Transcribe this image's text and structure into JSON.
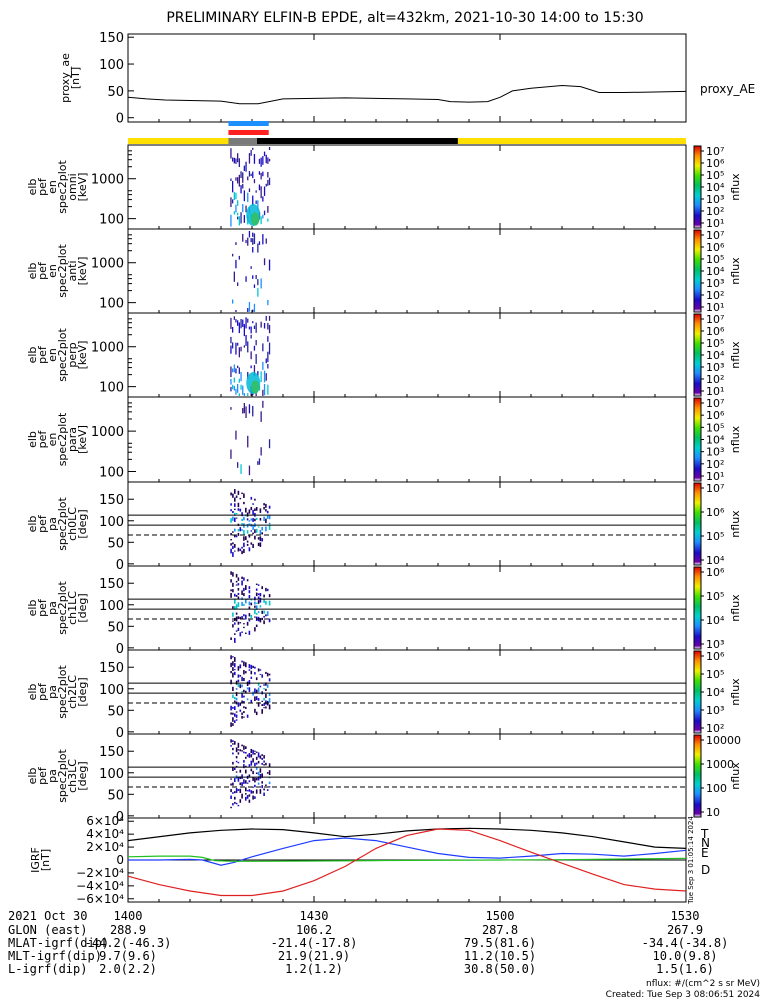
{
  "title": "PRELIMINARY ELFIN-B EPDE, alt=432km, 2021-10-30 14:00 to 15:30",
  "time": {
    "range_min": [
      0,
      90
    ],
    "ticks": [
      {
        "t": 0,
        "label": "1400"
      },
      {
        "t": 30,
        "label": "1430"
      },
      {
        "t": 60,
        "label": "1500"
      },
      {
        "t": 90,
        "label": "1530"
      }
    ]
  },
  "colors": {
    "proxy_bar": "#ffe000",
    "black_bar": "#000000",
    "blue_marker": "#1e8fff",
    "red_marker": "#ff2020",
    "spec_bg": "#ffffff"
  },
  "chart_data": [
    {
      "type": "line",
      "panel": "proxy_ae",
      "ylabel_lines": [
        "proxy_ae",
        "[nT]"
      ],
      "ylim": [
        0,
        150
      ],
      "yticks": [
        {
          "v": 0,
          "label": "0"
        },
        {
          "v": 50,
          "label": "50"
        },
        {
          "v": 100,
          "label": "100"
        },
        {
          "v": 150,
          "label": "150"
        }
      ],
      "legend": "proxy_AE",
      "x": [
        0,
        3,
        6,
        10,
        15,
        18,
        21,
        25,
        30,
        35,
        40,
        45,
        50,
        52,
        55,
        58,
        60,
        62,
        65,
        70,
        73,
        76,
        80,
        85,
        90
      ],
      "y": [
        38,
        35,
        33,
        32,
        31,
        26,
        26,
        35,
        36,
        37,
        36,
        35,
        34,
        30,
        29,
        30,
        38,
        50,
        55,
        60,
        58,
        47,
        47,
        48,
        49
      ]
    },
    {
      "type": "heatmap",
      "panel": "omni",
      "ylabel_lines": [
        "elb",
        "pef",
        "en",
        "spec2plot",
        "omni",
        "[keV]"
      ],
      "yscale": "log",
      "yticks": [
        {
          "v": 100,
          "label": "100"
        },
        {
          "v": 1000,
          "label": "1000"
        }
      ],
      "colorbar": {
        "label": "nflux",
        "ticks": [
          "10⁷",
          "10⁶",
          "10⁵",
          "10⁴",
          "10³",
          "10²",
          "10¹"
        ]
      }
    },
    {
      "type": "heatmap",
      "panel": "anti",
      "ylabel_lines": [
        "elb",
        "pef",
        "en",
        "spec2plot",
        "anti",
        "[keV]"
      ],
      "yscale": "log",
      "yticks": [
        {
          "v": 100,
          "label": "100"
        },
        {
          "v": 1000,
          "label": "1000"
        }
      ],
      "colorbar": {
        "label": "nflux",
        "ticks": [
          "10⁷",
          "10⁶",
          "10⁵",
          "10⁴",
          "10³",
          "10²",
          "10¹"
        ]
      }
    },
    {
      "type": "heatmap",
      "panel": "perp",
      "ylabel_lines": [
        "elb",
        "pef",
        "en",
        "spec2plot",
        "perp",
        "[keV]"
      ],
      "yscale": "log",
      "yticks": [
        {
          "v": 100,
          "label": "100"
        },
        {
          "v": 1000,
          "label": "1000"
        }
      ],
      "colorbar": {
        "label": "nflux",
        "ticks": [
          "10⁷",
          "10⁶",
          "10⁵",
          "10⁴",
          "10³",
          "10²",
          "10¹"
        ]
      }
    },
    {
      "type": "heatmap",
      "panel": "para",
      "ylabel_lines": [
        "elb",
        "pef",
        "en",
        "spec2plot",
        "para",
        "[keV]"
      ],
      "yscale": "log",
      "yticks": [
        {
          "v": 100,
          "label": "100"
        },
        {
          "v": 1000,
          "label": "1000"
        }
      ],
      "colorbar": {
        "label": "nflux",
        "ticks": [
          "10⁷",
          "10⁶",
          "10⁵",
          "10⁴",
          "10³",
          "10²",
          "10¹"
        ]
      }
    },
    {
      "type": "heatmap",
      "panel": "ch0LC",
      "ylabel_lines": [
        "elb",
        "pef",
        "pa",
        "spec2plot",
        "ch0LC",
        "[deg]"
      ],
      "ylim": [
        0,
        180
      ],
      "yticks": [
        {
          "v": 0,
          "label": "0"
        },
        {
          "v": 50,
          "label": "50"
        },
        {
          "v": 100,
          "label": "100"
        },
        {
          "v": 150,
          "label": "150"
        }
      ],
      "reference_lines": {
        "solid": [
          113,
          90
        ],
        "dashed": [
          67
        ]
      },
      "colorbar": {
        "label": "nflux",
        "ticks": [
          "10⁷",
          "10⁶",
          "10⁵",
          "10⁴"
        ]
      }
    },
    {
      "type": "heatmap",
      "panel": "ch1LC",
      "ylabel_lines": [
        "elb",
        "pef",
        "pa",
        "spec2plot",
        "ch1LC",
        "[deg]"
      ],
      "ylim": [
        0,
        180
      ],
      "yticks": [
        {
          "v": 0,
          "label": "0"
        },
        {
          "v": 50,
          "label": "50"
        },
        {
          "v": 100,
          "label": "100"
        },
        {
          "v": 150,
          "label": "150"
        }
      ],
      "reference_lines": {
        "solid": [
          113,
          90
        ],
        "dashed": [
          67
        ]
      },
      "colorbar": {
        "label": "nflux",
        "ticks": [
          "10⁶",
          "10⁵",
          "10⁴",
          "10³"
        ]
      }
    },
    {
      "type": "heatmap",
      "panel": "ch2LC",
      "ylabel_lines": [
        "elb",
        "pef",
        "pa",
        "spec2plot",
        "ch2LC",
        "[deg]"
      ],
      "ylim": [
        0,
        180
      ],
      "yticks": [
        {
          "v": 0,
          "label": "0"
        },
        {
          "v": 50,
          "label": "50"
        },
        {
          "v": 100,
          "label": "100"
        },
        {
          "v": 150,
          "label": "150"
        }
      ],
      "reference_lines": {
        "solid": [
          113,
          90
        ],
        "dashed": [
          67
        ]
      },
      "colorbar": {
        "label": "nflux",
        "ticks": [
          "10⁶",
          "10⁵",
          "10⁴",
          "10³",
          "10²"
        ]
      }
    },
    {
      "type": "heatmap",
      "panel": "ch3LC",
      "ylabel_lines": [
        "elb",
        "pef",
        "pa",
        "spec2plot",
        "ch3LC",
        "[deg]"
      ],
      "ylim": [
        0,
        180
      ],
      "yticks": [
        {
          "v": 0,
          "label": "0"
        },
        {
          "v": 50,
          "label": "50"
        },
        {
          "v": 100,
          "label": "100"
        },
        {
          "v": 150,
          "label": "150"
        }
      ],
      "reference_lines": {
        "solid": [
          113,
          90
        ],
        "dashed": [
          67
        ]
      },
      "colorbar": {
        "label": "nflux",
        "ticks": [
          "10000",
          "1000",
          "100",
          "10"
        ]
      }
    },
    {
      "type": "line",
      "panel": "igrf",
      "ylabel_lines": [
        "IGRF",
        "[nT]"
      ],
      "ylim": [
        -65000,
        65000
      ],
      "yticks": [
        {
          "v": 60000,
          "label": "6×10⁴"
        },
        {
          "v": 40000,
          "label": "4×10⁴"
        },
        {
          "v": 20000,
          "label": "2×10⁴"
        },
        {
          "v": 0,
          "label": "0"
        },
        {
          "v": -20000,
          "label": "−2×10⁴"
        },
        {
          "v": -40000,
          "label": "−4×10⁴"
        },
        {
          "v": -60000,
          "label": "−6×10⁴"
        }
      ],
      "side_label": "Tue Sep  3 01:05:14 2024",
      "series": [
        {
          "name": "T",
          "color": "#000000",
          "x": [
            0,
            10,
            15,
            20,
            25,
            30,
            35,
            40,
            45,
            50,
            55,
            60,
            65,
            70,
            75,
            80,
            85,
            90
          ],
          "y": [
            30000,
            42000,
            46000,
            48000,
            47000,
            42000,
            36000,
            40000,
            45000,
            48000,
            49000,
            48000,
            46000,
            42000,
            36000,
            28000,
            20000,
            18000
          ]
        },
        {
          "name": "N",
          "color": "#1e3cff",
          "x": [
            0,
            5,
            10,
            12,
            15,
            17,
            20,
            25,
            30,
            35,
            40,
            45,
            50,
            55,
            60,
            65,
            70,
            75,
            80,
            85,
            90
          ],
          "y": [
            0,
            0,
            1000,
            0,
            -8000,
            -4000,
            5000,
            18000,
            30000,
            34000,
            30000,
            20000,
            10000,
            4000,
            3000,
            6000,
            10000,
            9000,
            6000,
            10000,
            15000
          ]
        },
        {
          "name": "E",
          "color": "#20c020",
          "x": [
            0,
            5,
            10,
            12,
            14,
            17,
            20,
            30,
            40,
            50,
            60,
            70,
            80,
            90
          ],
          "y": [
            5000,
            6000,
            6000,
            4000,
            -1000,
            -2000,
            -2000,
            -1500,
            -1000,
            -500,
            0,
            500,
            1500,
            2500
          ]
        },
        {
          "name": "D",
          "color": "#e02020",
          "x": [
            0,
            5,
            10,
            15,
            20,
            25,
            30,
            35,
            40,
            45,
            50,
            55,
            60,
            65,
            70,
            75,
            80,
            85,
            90
          ],
          "y": [
            -25000,
            -38000,
            -48000,
            -55000,
            -55000,
            -48000,
            -32000,
            -10000,
            18000,
            38000,
            48000,
            46000,
            30000,
            12000,
            -5000,
            -22000,
            -38000,
            -45000,
            -48000
          ]
        }
      ]
    }
  ],
  "orbit_table": {
    "rows": [
      {
        "label": "2021 Oct 30",
        "values": [
          "1400",
          "1430",
          "1500",
          "1530"
        ]
      },
      {
        "label": "GLON (east)",
        "values": [
          "288.9",
          "106.2",
          "287.8",
          "267.9"
        ]
      },
      {
        "label": "MLAT-igrf(dip)",
        "values": [
          "-44.2(-46.3)",
          "-21.4(-17.8)",
          "79.5(81.6)",
          "-34.4(-34.8)"
        ]
      },
      {
        "label": "MLT-igrf(dip)",
        "values": [
          "9.7(9.6)",
          "21.9(21.9)",
          "11.2(10.5)",
          "10.0(9.8)"
        ]
      },
      {
        "label": "L-igrf(dip)",
        "values": [
          "2.0(2.2)",
          "1.2(1.2)",
          "30.8(50.0)",
          "1.5(1.6)"
        ]
      }
    ]
  },
  "footer": {
    "units": "nflux: #/(cm^2 s sr MeV)",
    "created": "Created: Tue Sep  3 08:06:51 2024"
  }
}
